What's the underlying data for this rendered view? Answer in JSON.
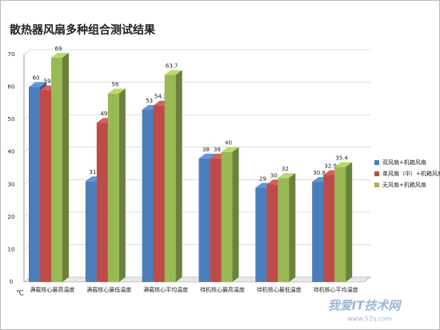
{
  "chart_data": {
    "type": "bar3d",
    "title": "散热器风扇多种组合测试结果",
    "y_label": "℃",
    "categories": [
      "满载核心最高温度",
      "满载核心最低温度",
      "满载核心平均温度",
      "待机核心最高温度",
      "待机核心最低温度",
      "待机核心平均温度"
    ],
    "series": [
      {
        "name": "双风扇+机箱风扇",
        "color": "#4a7ebb",
        "values": [
          60,
          31,
          53,
          38,
          29,
          30.8
        ]
      },
      {
        "name": "单风扇（中）+机箱风扇",
        "color": "#be4b48",
        "values": [
          59,
          49,
          54.3,
          38,
          30,
          32.9
        ]
      },
      {
        "name": "无风扇+机箱风扇",
        "color": "#98b954",
        "values": [
          69,
          58,
          63.7,
          40,
          32,
          35.4
        ]
      }
    ],
    "ylim": [
      0,
      70
    ],
    "yticks": [
      0,
      10,
      20,
      30,
      40,
      50,
      60,
      70
    ],
    "grid": true,
    "legend": "right",
    "watermark": [
      "我爱IT技术网",
      "www.52ij.com"
    ]
  }
}
